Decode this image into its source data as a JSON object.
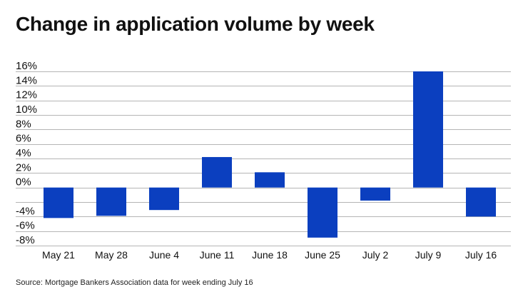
{
  "title": "Change in application volume by week",
  "source": "Source: Mortgage Bankers Association data for week ending July 16",
  "colors": {
    "bar": "#0b3fbf",
    "grid": "#b5b5b5",
    "text": "#111111"
  },
  "chart_data": {
    "type": "bar",
    "title": "Change in application volume by week",
    "xlabel": "",
    "ylabel": "",
    "categories": [
      "May 21",
      "May 28",
      "June 4",
      "June 11",
      "June 18",
      "June 25",
      "July 2",
      "July 9",
      "July 16"
    ],
    "values": [
      -4.2,
      -3.9,
      -3.1,
      4.2,
      2.1,
      -6.9,
      -1.8,
      16.0,
      -4.0
    ],
    "ylim": [
      -8,
      16
    ],
    "yticks": [
      16,
      14,
      12,
      10,
      8,
      6,
      4,
      2,
      0,
      -4,
      -6,
      -8
    ],
    "ytick_labels": [
      "16%",
      "14%",
      "12%",
      "10%",
      "8%",
      "6%",
      "4%",
      "2%",
      "0%",
      "-4%",
      "-6%",
      "-8%"
    ],
    "grid": true,
    "legend": "none"
  }
}
